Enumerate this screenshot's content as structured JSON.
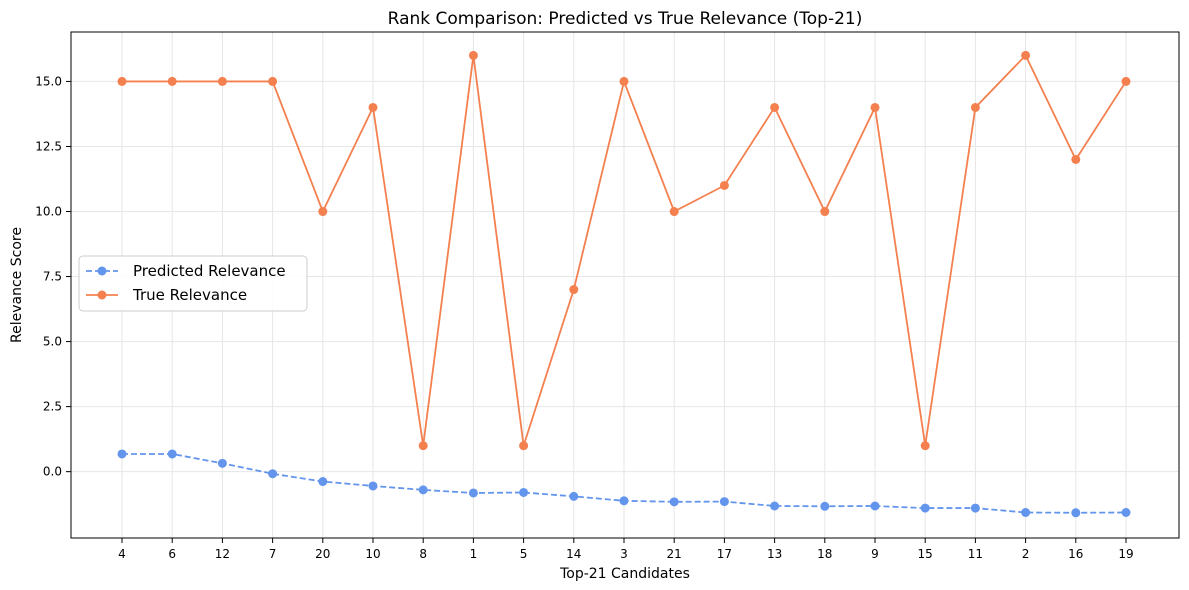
{
  "chart_data": {
    "type": "line",
    "title": "Rank Comparison: Predicted vs True Relevance (Top-21)",
    "xlabel": "Top-21 Candidates",
    "ylabel": "Relevance Score",
    "categories": [
      "4",
      "6",
      "12",
      "7",
      "20",
      "10",
      "8",
      "1",
      "5",
      "14",
      "3",
      "21",
      "17",
      "13",
      "18",
      "9",
      "15",
      "11",
      "2",
      "16",
      "19"
    ],
    "ylim": [
      -2.55,
      16.9
    ],
    "yticks": [
      0.0,
      2.5,
      5.0,
      7.5,
      10.0,
      12.5,
      15.0
    ],
    "ytick_labels": [
      "0.0",
      "2.5",
      "5.0",
      "7.5",
      "10.0",
      "12.5",
      "15.0"
    ],
    "grid": true,
    "legend_position": "center-left",
    "series": [
      {
        "name": "Predicted Relevance",
        "color": "#6495ED",
        "line_style": "dashed",
        "marker": "circle",
        "values": [
          0.68,
          0.68,
          0.32,
          -0.08,
          -0.38,
          -0.55,
          -0.7,
          -0.82,
          -0.8,
          -0.95,
          -1.12,
          -1.16,
          -1.15,
          -1.32,
          -1.33,
          -1.32,
          -1.4,
          -1.4,
          -1.57,
          -1.58,
          -1.57
        ]
      },
      {
        "name": "True Relevance",
        "color": "#F4804F",
        "line_style": "solid",
        "marker": "circle",
        "values": [
          15,
          15,
          15,
          15,
          10,
          14,
          1,
          16,
          1,
          7,
          15,
          10,
          11,
          14,
          10,
          14,
          1,
          14,
          16,
          12,
          15
        ]
      }
    ]
  }
}
